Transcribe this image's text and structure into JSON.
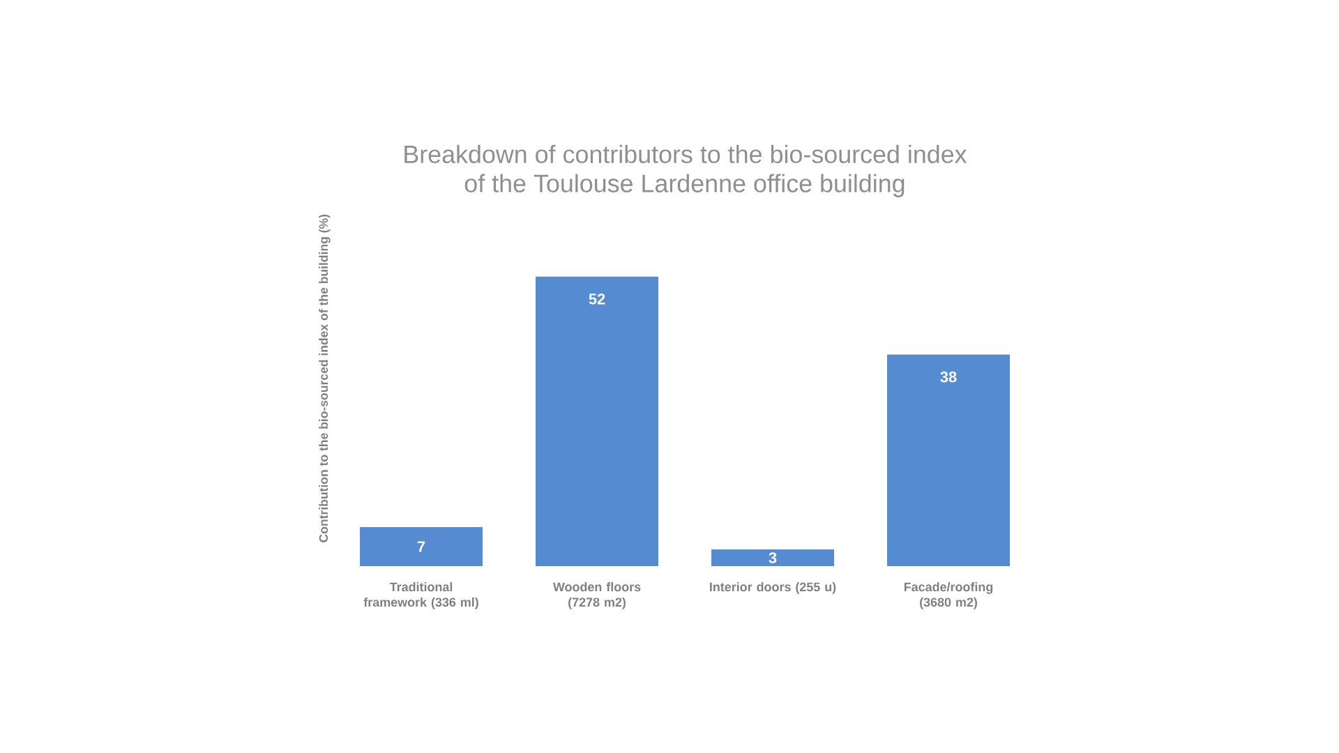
{
  "chart_data": {
    "type": "bar",
    "title": "Breakdown of contributors to the bio-sourced index of the Toulouse Lardenne office building",
    "ylabel": "Contribution to the bio-sourced index of the building (%)",
    "categories": [
      "Traditional framework (336 ml)",
      "Wooden floors (7278 m2)",
      "Interior doors (255 u)",
      "Facade/roofing (3680 m2)"
    ],
    "values": [
      7,
      52,
      3,
      38
    ],
    "color": "#558bd0",
    "data_labels": true
  }
}
